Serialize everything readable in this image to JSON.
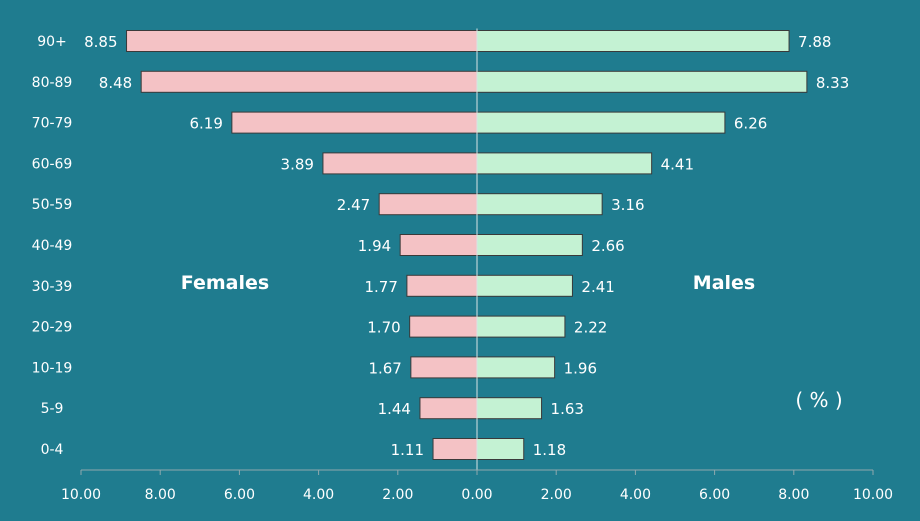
{
  "chart_data": {
    "type": "bar",
    "orientation": "horizontal-butterfly",
    "categories": [
      "90+",
      "80-89",
      "70-79",
      "60-69",
      "50-59",
      "40-49",
      "30-39",
      "20-29",
      "10-19",
      "5-9",
      "0-4"
    ],
    "series": [
      {
        "name": "Females",
        "side": "left",
        "color": "#f4c2c5",
        "values": [
          8.85,
          8.48,
          6.19,
          3.89,
          2.47,
          1.94,
          1.77,
          1.7,
          1.67,
          1.44,
          1.11
        ]
      },
      {
        "name": "Males",
        "side": "right",
        "color": "#c4f2d3",
        "values": [
          7.88,
          8.33,
          6.26,
          4.41,
          3.16,
          2.66,
          2.41,
          2.22,
          1.96,
          1.63,
          1.18
        ]
      }
    ],
    "value_labels": {
      "left": [
        "8.85",
        "8.48",
        "6.19",
        "3.89",
        "2.47",
        "1.94",
        "1.77",
        "1.70",
        "1.67",
        "1.44",
        "1.11"
      ],
      "right": [
        "7.88",
        "8.33",
        "6.26",
        "4.41",
        "3.16",
        "2.66",
        "2.41",
        "2.22",
        "1.96",
        "1.63",
        "1.18"
      ]
    },
    "xlim": [
      -10,
      10
    ],
    "x_ticks": [
      -10,
      -8,
      -6,
      -4,
      -2,
      0,
      2,
      4,
      6,
      8,
      10
    ],
    "x_tick_labels": [
      "10.00",
      "8.00",
      "6.00",
      "4.00",
      "2.00",
      "0.00",
      "2.00",
      "4.00",
      "6.00",
      "8.00",
      "10.00"
    ],
    "unit": "( % )",
    "grid": false,
    "background": "#1f7c8f",
    "axis_color": "#8fa9ae",
    "bar_border": "#3a3a3a"
  }
}
